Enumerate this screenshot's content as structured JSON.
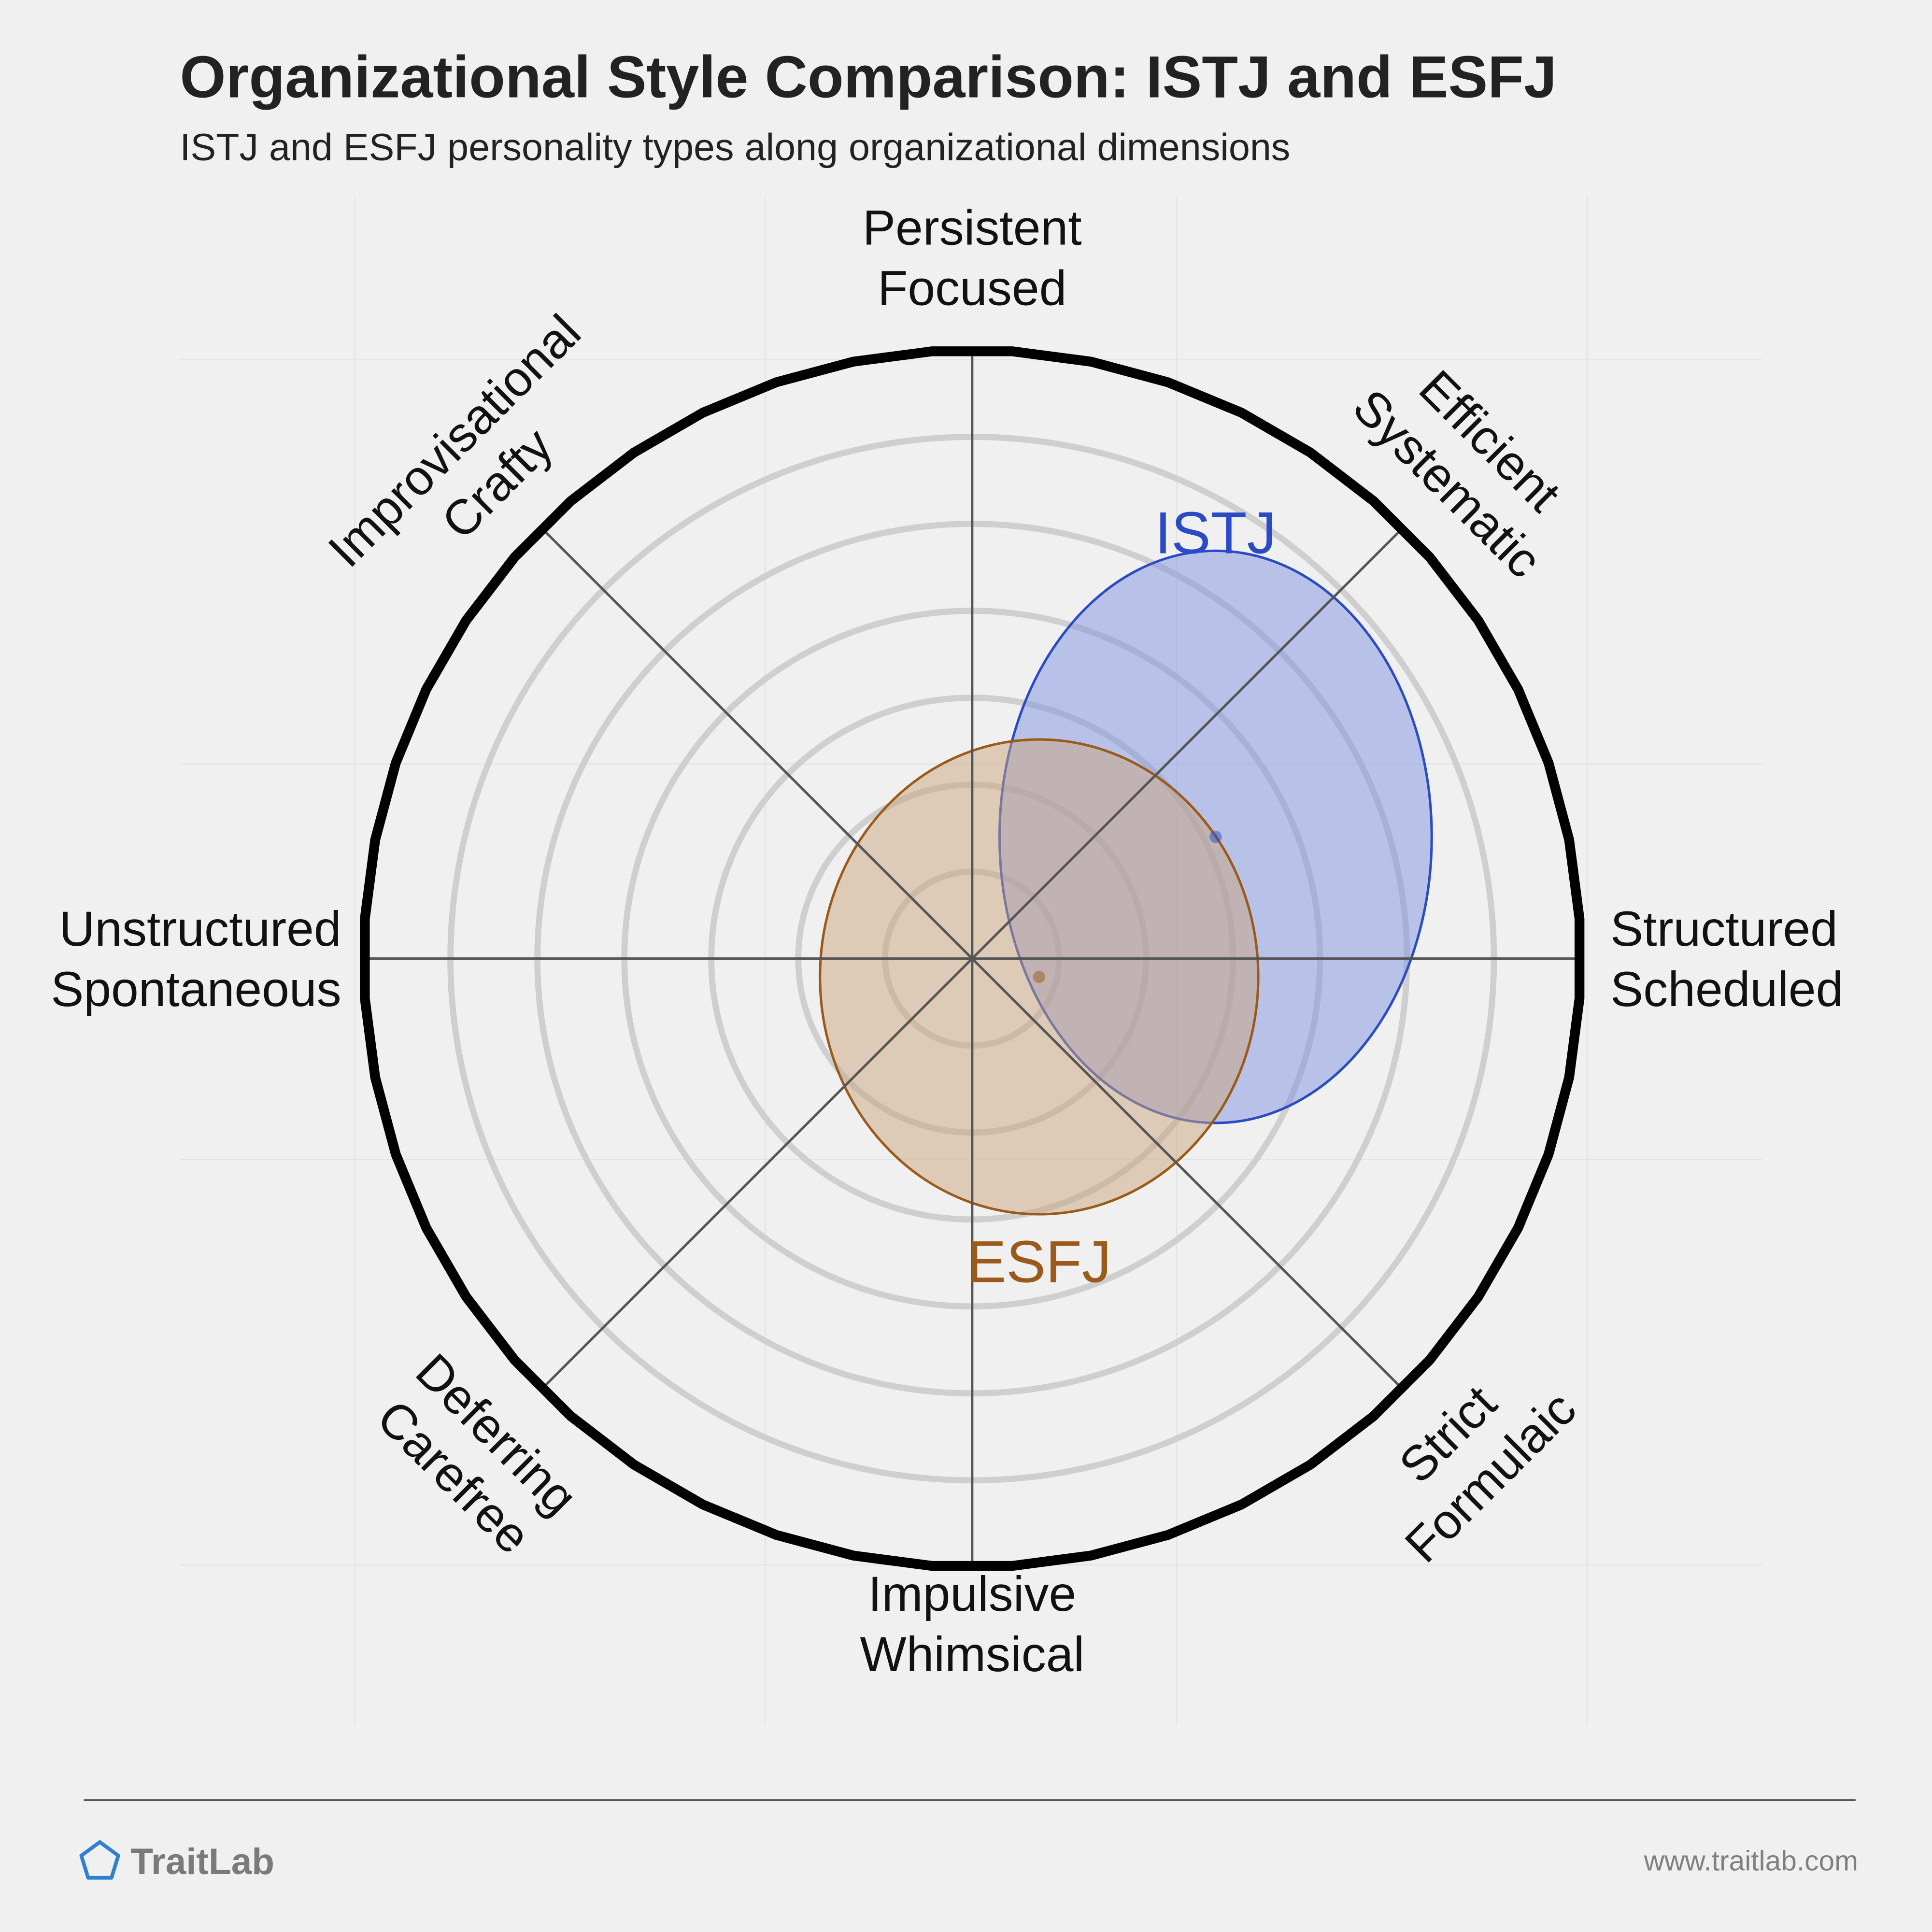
{
  "header": {
    "title": "Organizational Style Comparison: ISTJ and ESFJ",
    "subtitle": "ISTJ and ESFJ personality types along organizational dimensions"
  },
  "chart_data": {
    "type": "radar-ellipse",
    "axes": [
      {
        "lines": [
          "Persistent",
          "Focused"
        ]
      },
      {
        "lines": [
          "Efficient",
          "Systematic"
        ]
      },
      {
        "lines": [
          "Structured",
          "Scheduled"
        ]
      },
      {
        "lines": [
          "Strict",
          "Formulaic"
        ]
      },
      {
        "lines": [
          "Impulsive",
          "Whimsical"
        ]
      },
      {
        "lines": [
          "Deferring",
          "Carefree"
        ]
      },
      {
        "lines": [
          "Unstructured",
          "Spontaneous"
        ]
      },
      {
        "lines": [
          "Improvisational",
          "Crafty"
        ]
      }
    ],
    "grid_rings": 6,
    "series": [
      {
        "name": "ISTJ",
        "color": "#2a4bc4",
        "fill": "#7f91e0",
        "center": {
          "x": 0.4,
          "y": 0.2
        },
        "radius": {
          "x": 0.71,
          "y": 0.94
        }
      },
      {
        "name": "ESFJ",
        "color": "#9a5a1c",
        "fill": "#c9a57e",
        "center": {
          "x": 0.11,
          "y": -0.03
        },
        "radius": {
          "x": 0.72,
          "y": 0.78
        }
      }
    ]
  },
  "footer": {
    "brand": "TraitLab",
    "url": "www.traitlab.com"
  }
}
